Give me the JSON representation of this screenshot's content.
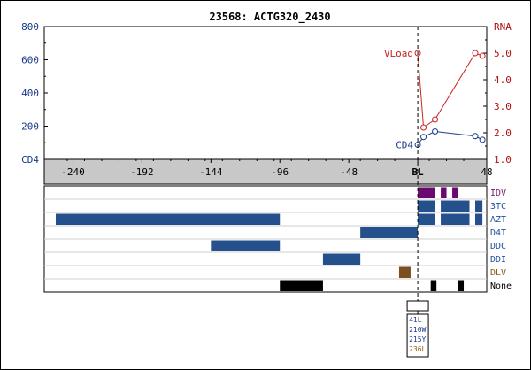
{
  "chart_data": {
    "type": "line",
    "title": "23568: ACTG320_2430",
    "x_axis": {
      "range": [
        -260,
        48
      ],
      "ticks": [
        -240,
        -192,
        -144,
        -96,
        -48,
        0,
        48
      ],
      "tick_labels": [
        "-240",
        "-192",
        "-144",
        "-96",
        "-48",
        "BL",
        "48"
      ]
    },
    "left_axis": {
      "label": "CD4",
      "range": [
        0,
        800
      ],
      "ticks": [
        0,
        200,
        400,
        600,
        800
      ],
      "tick_labels": [
        "",
        "200",
        "400",
        "600",
        "800"
      ],
      "color": "#1a3a8a"
    },
    "right_axis": {
      "label": "RNA",
      "range": [
        1.0,
        6.0
      ],
      "ticks": [
        1.0,
        2.0,
        3.0,
        4.0,
        5.0
      ],
      "tick_labels": [
        "1.0",
        "2.0",
        "3.0",
        "4.0",
        "5.0"
      ],
      "color": "#b01010"
    },
    "series": [
      {
        "name": "VLoad",
        "axis": "right",
        "color": "#cc2222",
        "points": [
          [
            0,
            5.0
          ],
          [
            4,
            2.2
          ],
          [
            12,
            2.5
          ],
          [
            40,
            5.0
          ],
          [
            45,
            4.9
          ]
        ]
      },
      {
        "name": "CD4",
        "axis": "left",
        "color": "#1a3a8a",
        "points": [
          [
            0,
            88
          ],
          [
            4,
            135
          ],
          [
            12,
            168
          ],
          [
            40,
            140
          ],
          [
            45,
            118
          ]
        ]
      }
    ],
    "drug_rows": [
      {
        "name": "IDV",
        "color": "#7a1a6e",
        "fill": "#6a0a70",
        "segments": [
          [
            0,
            12
          ],
          [
            16,
            20
          ],
          [
            24,
            28
          ]
        ]
      },
      {
        "name": "3TC",
        "color": "#2050a0",
        "fill": "#24508c",
        "segments": [
          [
            0,
            12
          ],
          [
            16,
            36
          ],
          [
            40,
            45
          ]
        ]
      },
      {
        "name": "AZT",
        "color": "#2050a0",
        "fill": "#24508c",
        "segments": [
          [
            -252,
            -96
          ],
          [
            0,
            12
          ],
          [
            16,
            36
          ],
          [
            40,
            45
          ]
        ]
      },
      {
        "name": "D4T",
        "color": "#2050a0",
        "fill": "#24508c",
        "segments": [
          [
            -40,
            0
          ]
        ]
      },
      {
        "name": "DDC",
        "color": "#2050a0",
        "fill": "#24508c",
        "segments": [
          [
            -144,
            -96
          ]
        ]
      },
      {
        "name": "DDI",
        "color": "#2050a0",
        "fill": "#24508c",
        "segments": [
          [
            -66,
            -40
          ]
        ]
      },
      {
        "name": "DLV",
        "color": "#8a5a10",
        "fill": "#7a5020",
        "segments": [
          [
            -13,
            -5
          ]
        ]
      },
      {
        "name": "None",
        "color": "#000000",
        "fill": "#000000",
        "segments": [
          [
            -96,
            -66
          ],
          [
            9,
            13
          ],
          [
            28,
            32
          ]
        ]
      }
    ],
    "mutations": [
      {
        "label": "41L",
        "color": "#1a3a8a"
      },
      {
        "label": "210W",
        "color": "#1a3a8a"
      },
      {
        "label": "215Y",
        "color": "#1a3a8a"
      },
      {
        "label": "236L",
        "color": "#8a5a10"
      }
    ]
  }
}
